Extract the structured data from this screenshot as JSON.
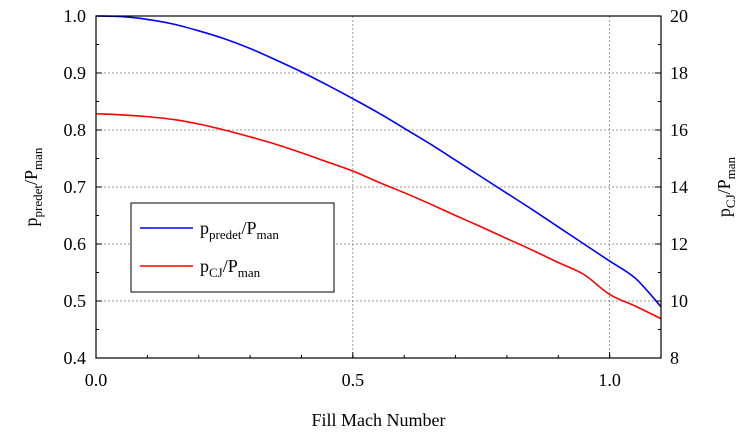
{
  "chart_data": {
    "type": "line",
    "xlabel": "Fill Mach Number",
    "xlim": [
      0.0,
      1.1
    ],
    "x_ticks": [
      {
        "value": 0.0,
        "label": "0.0"
      },
      {
        "value": 0.5,
        "label": "0.5"
      },
      {
        "value": 1.0,
        "label": "1.0"
      }
    ],
    "left_axis": {
      "label_base": "p",
      "label_sub": "predet",
      "label_mid": "/P",
      "label_sub2": "man",
      "ylim": [
        0.4,
        1.0
      ],
      "ticks": [
        {
          "value": 0.4,
          "label": "0.4"
        },
        {
          "value": 0.5,
          "label": "0.5"
        },
        {
          "value": 0.6,
          "label": "0.6"
        },
        {
          "value": 0.7,
          "label": "0.7"
        },
        {
          "value": 0.8,
          "label": "0.8"
        },
        {
          "value": 0.9,
          "label": "0.9"
        },
        {
          "value": 1.0,
          "label": "1.0"
        }
      ]
    },
    "right_axis": {
      "label_base": "p",
      "label_sub": "CJ",
      "label_mid": "/P",
      "label_sub2": "man",
      "ylim": [
        8,
        20
      ],
      "ticks": [
        {
          "value": 8,
          "label": "8"
        },
        {
          "value": 10,
          "label": "10"
        },
        {
          "value": 12,
          "label": "12"
        },
        {
          "value": 14,
          "label": "14"
        },
        {
          "value": 16,
          "label": "16"
        },
        {
          "value": 18,
          "label": "18"
        },
        {
          "value": 20,
          "label": "20"
        }
      ]
    },
    "grid": true,
    "legend_position": "lower-left",
    "series": [
      {
        "name_base": "p",
        "name_sub": "predet",
        "name_mid": "/P",
        "name_sub2": "man",
        "axis": "left",
        "color": "#0000ff",
        "x": [
          0.0,
          0.05,
          0.1,
          0.15,
          0.2,
          0.25,
          0.3,
          0.35,
          0.4,
          0.45,
          0.5,
          0.55,
          0.6,
          0.65,
          0.7,
          0.75,
          0.8,
          0.85,
          0.9,
          0.95,
          1.0,
          1.05,
          1.1
        ],
        "y": [
          1.0,
          0.999,
          0.994,
          0.986,
          0.974,
          0.96,
          0.943,
          0.923,
          0.902,
          0.879,
          0.855,
          0.83,
          0.803,
          0.776,
          0.747,
          0.718,
          0.689,
          0.66,
          0.63,
          0.6,
          0.57,
          0.54,
          0.49
        ]
      },
      {
        "name_base": "p",
        "name_sub": "CJ",
        "name_mid": "/P",
        "name_sub2": "man",
        "axis": "right",
        "color": "#ff0000",
        "x": [
          0.0,
          0.05,
          0.1,
          0.15,
          0.2,
          0.25,
          0.3,
          0.35,
          0.4,
          0.45,
          0.5,
          0.55,
          0.6,
          0.65,
          0.7,
          0.75,
          0.8,
          0.85,
          0.9,
          0.95,
          1.0,
          1.05,
          1.1
        ],
        "y": [
          16.57,
          16.53,
          16.47,
          16.37,
          16.21,
          16.0,
          15.76,
          15.5,
          15.2,
          14.88,
          14.56,
          14.17,
          13.8,
          13.41,
          13.0,
          12.6,
          12.19,
          11.78,
          11.35,
          10.93,
          10.23,
          9.82,
          9.38
        ]
      }
    ]
  }
}
